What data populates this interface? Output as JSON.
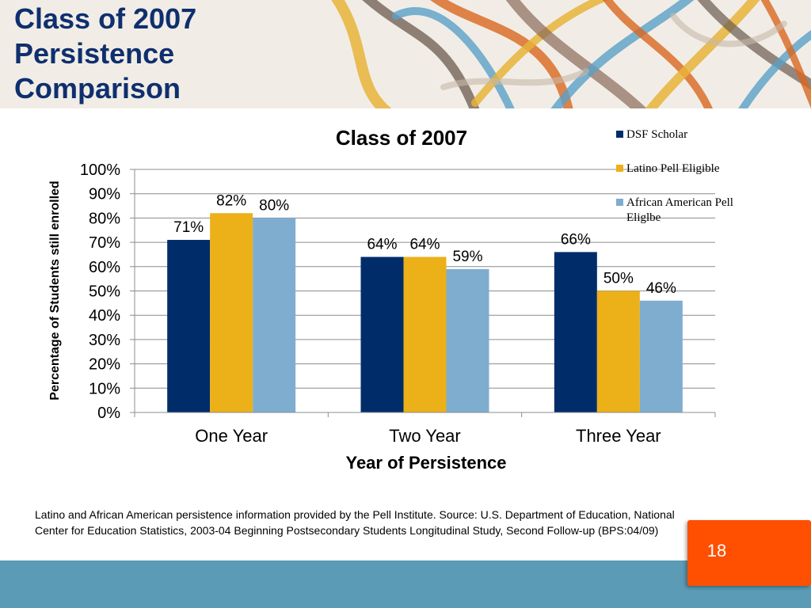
{
  "slide": {
    "title_lines": [
      "Class of 2007",
      "Persistence",
      "Comparison"
    ],
    "footnote": "Latino and African American persistence information provided by the Pell Institute.  Source:  U.S. Department of Education, National Center for Education Statistics, 2003-04 Beginning Postsecondary Students Longitudinal Study, Second Follow-up (BPS:04/09)",
    "page_number": "18"
  },
  "colors": {
    "dsf": "#002d6a",
    "latino": "#ecb018",
    "african": "#7eadd0",
    "title": "#0f2f6e",
    "page_box": "#fe5000",
    "band": "#5b9bb5"
  },
  "chart_data": {
    "type": "bar",
    "title": "Class of 2007",
    "xlabel": "Year of Persistence",
    "ylabel": "Percentage of Students still enrolled",
    "categories": [
      "One Year",
      "Two Year",
      "Three Year"
    ],
    "series": [
      {
        "name": "DSF Scholar",
        "values": [
          71,
          64,
          66
        ],
        "labels": [
          "71%",
          "64%",
          "66%"
        ]
      },
      {
        "name": "Latino Pell Eligible",
        "values": [
          82,
          64,
          50
        ],
        "labels": [
          "82%",
          "64%",
          "50%"
        ]
      },
      {
        "name": "African American Pell Eliglbe",
        "values": [
          80,
          59,
          46
        ],
        "labels": [
          "80%",
          "59%",
          "46%"
        ]
      }
    ],
    "ylim": [
      0,
      100
    ],
    "yticks": [
      "0%",
      "10%",
      "20%",
      "30%",
      "40%",
      "50%",
      "60%",
      "70%",
      "80%",
      "90%",
      "100%"
    ],
    "grid": true,
    "legend": "top-right"
  }
}
